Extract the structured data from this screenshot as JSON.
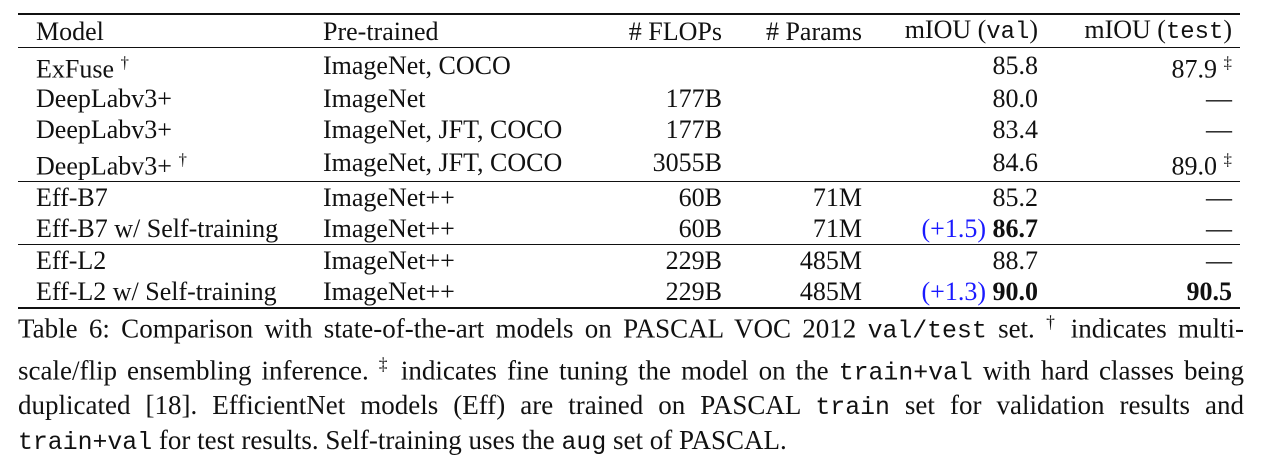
{
  "table": {
    "columns": [
      [
        {
          "text": "Model"
        }
      ],
      [
        {
          "text": "Pre-trained"
        }
      ],
      [
        {
          "text": "# FLOPs"
        }
      ],
      [
        {
          "text": "# Params"
        }
      ],
      [
        {
          "text": "mIOU ("
        },
        {
          "text": "val",
          "style": "code"
        },
        {
          "text": ")"
        }
      ],
      [
        {
          "text": "mIOU ("
        },
        {
          "text": "test",
          "style": "code"
        },
        {
          "text": ")"
        }
      ]
    ],
    "groups": [
      [
        {
          "model": "ExFuse",
          "model_mark": "†",
          "pretrained": "ImageNet, COCO",
          "val": {
            "value": "85.8"
          },
          "test": {
            "value": "87.9",
            "mark": "‡"
          }
        },
        {
          "model": "DeepLabv3+",
          "pretrained": "ImageNet",
          "flops": "177B",
          "val": {
            "value": "80.0"
          },
          "test": {
            "value": "—"
          }
        },
        {
          "model": "DeepLabv3+",
          "pretrained": "ImageNet, JFT, COCO",
          "flops": "177B",
          "val": {
            "value": "83.4"
          },
          "test": {
            "value": "—"
          }
        },
        {
          "model": "DeepLabv3+",
          "model_mark": "†",
          "pretrained": "ImageNet, JFT, COCO",
          "flops": "3055B",
          "val": {
            "value": "84.6"
          },
          "test": {
            "value": "89.0",
            "mark": "‡"
          }
        }
      ],
      [
        {
          "model": "Eff-B7",
          "pretrained": "ImageNet++",
          "flops": "60B",
          "params": "71M",
          "val": {
            "value": "85.2"
          },
          "test": {
            "value": "—"
          }
        },
        {
          "model": "Eff-B7 w/ Self-training",
          "pretrained": "ImageNet++",
          "flops": "60B",
          "params": "71M",
          "val": {
            "gain": "(+1.5)",
            "value": "86.7",
            "bold": true
          },
          "test": {
            "value": "—"
          }
        }
      ],
      [
        {
          "model": "Eff-L2",
          "pretrained": "ImageNet++",
          "flops": "229B",
          "params": "485M",
          "val": {
            "value": "88.7"
          },
          "test": {
            "value": "—"
          }
        },
        {
          "model": "Eff-L2 w/ Self-training",
          "pretrained": "ImageNet++",
          "flops": "229B",
          "params": "485M",
          "val": {
            "gain": "(+1.3)",
            "value": "90.0",
            "bold": true
          },
          "test": {
            "value": "90.5",
            "bold": true
          }
        }
      ]
    ]
  },
  "caption": {
    "segments": [
      {
        "text": "Table 6: Comparison with state-of-the-art models on PASCAL VOC 2012 "
      },
      {
        "text": "val/test",
        "style": "code"
      },
      {
        "text": " set. "
      },
      {
        "text": "†",
        "style": "sup"
      },
      {
        "text": " indicates multi-scale/flip ensembling inference. "
      },
      {
        "text": "‡",
        "style": "sup"
      },
      {
        "text": " indicates fine tuning the model on the "
      },
      {
        "text": "train+val",
        "style": "code"
      },
      {
        "text": " with hard classes being duplicated [18]. EfficientNet models (Eff) are trained on PASCAL "
      },
      {
        "text": "train",
        "style": "code"
      },
      {
        "text": " set for validation results and "
      },
      {
        "text": "train+val",
        "style": "code"
      },
      {
        "text": " for test results. Self-training uses the "
      },
      {
        "text": "aug",
        "style": "code"
      },
      {
        "text": " set of PASCAL."
      }
    ]
  }
}
